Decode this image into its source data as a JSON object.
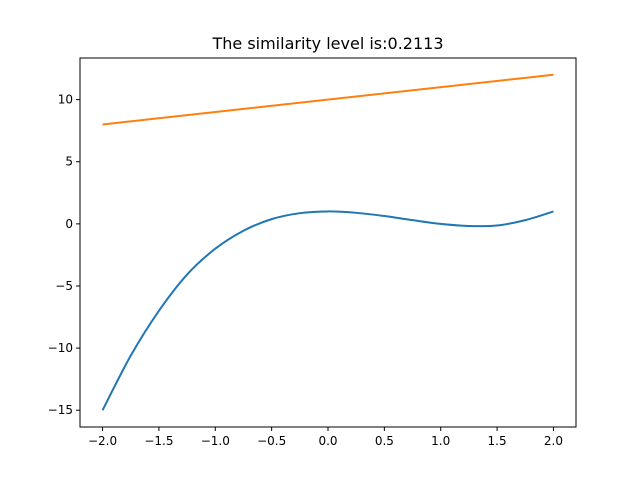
{
  "chart_data": {
    "type": "line",
    "title": "The similarity level is:0.2113",
    "xlabel": "",
    "ylabel": "",
    "xlim": [
      -2.2,
      2.2
    ],
    "ylim": [
      -16.35,
      13.35
    ],
    "grid": false,
    "x_ticks": [
      -2.0,
      -1.5,
      -1.0,
      -0.5,
      0.0,
      0.5,
      1.0,
      1.5,
      2.0
    ],
    "x_tick_labels": [
      "−2.0",
      "−1.5",
      "−1.0",
      "−0.5",
      "0.0",
      "0.5",
      "1.0",
      "1.5",
      "2.0"
    ],
    "y_ticks": [
      -15,
      -10,
      -5,
      0,
      5,
      10
    ],
    "y_tick_labels": [
      "−15",
      "−10",
      "−5",
      "0",
      "5",
      "10"
    ],
    "series": [
      {
        "color": "#1f77b4",
        "x": [
          -2.0,
          -1.75,
          -1.5,
          -1.25,
          -1.0,
          -0.75,
          -0.5,
          -0.25,
          0.0,
          0.25,
          0.5,
          0.75,
          1.0,
          1.25,
          1.5,
          1.75,
          2.0
        ],
        "values": [
          -15.0,
          -10.61,
          -7.0,
          -4.08,
          -2.0,
          -0.55,
          0.38,
          0.86,
          1.0,
          0.89,
          0.63,
          0.3,
          0.0,
          -0.17,
          -0.13,
          0.3,
          1.0
        ]
      },
      {
        "color": "#ff7f0e",
        "x": [
          -2.0,
          2.0
        ],
        "values": [
          8.0,
          12.0
        ]
      }
    ]
  }
}
